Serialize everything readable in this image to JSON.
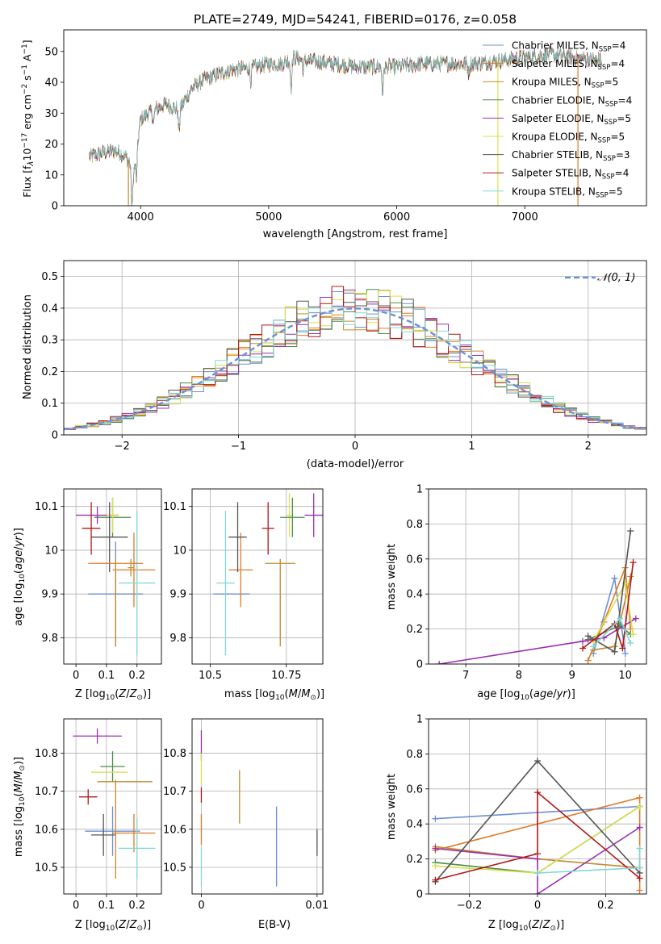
{
  "figure_title": "PLATE=2749, MJD=54241, FIBERID=0176, z=0.058",
  "models": [
    {
      "name": "Chabrier MILES, N$_{SSP}$=4",
      "label_html": "Chabrier MILES, N<sub>SSP</sub>=4",
      "color": "#6d8fd6"
    },
    {
      "name": "Salpeter MILES, N$_{SSP}$=4",
      "label_html": "Salpeter MILES, N<sub>SSP</sub>=4",
      "color": "#e07a28"
    },
    {
      "name": "Kroupa MILES, N$_{SSP}$=5",
      "label_html": "Kroupa MILES, N<sub>SSP</sub>=5",
      "color": "#c68a2c"
    },
    {
      "name": "Chabrier ELODIE, N$_{SSP}$=4",
      "label_html": "Chabrier ELODIE, N<sub>SSP</sub>=4",
      "color": "#4a8c4a"
    },
    {
      "name": "Salpeter ELODIE, N$_{SSP}$=5",
      "label_html": "Salpeter ELODIE, N<sub>SSP</sub>=5",
      "color": "#9b30b0"
    },
    {
      "name": "Kroupa ELODIE, N$_{SSP}$=5",
      "label_html": "Kroupa ELODIE, N<sub>SSP</sub>=5",
      "color": "#d8e24a"
    },
    {
      "name": "Chabrier STELIB, N$_{SSP}$=3",
      "label_html": "Chabrier STELIB, N<sub>SSP</sub>=3",
      "color": "#555555"
    },
    {
      "name": "Salpeter STELIB, N$_{SSP}$=4",
      "label_html": "Salpeter STELIB, N<sub>SSP</sub>=4",
      "color": "#b01818"
    },
    {
      "name": "Kroupa STELIB, N$_{SSP}$=5",
      "label_html": "Kroupa STELIB, N<sub>SSP</sub>=5",
      "color": "#7fd8d8"
    }
  ],
  "chart_data": [
    {
      "id": "spectrum",
      "type": "line",
      "xlabel": "wavelength [Angstrom, rest frame]",
      "ylabel": "Flux [f$_\\lambda$10$^{-17}$ erg cm$^{-2}$ s$^{-1}$ A$^{-1}$]",
      "xlim": [
        3400,
        7950
      ],
      "ylim": [
        0,
        57
      ],
      "xticks": [
        4000,
        5000,
        6000,
        7000
      ],
      "yticks": [
        0,
        10,
        20,
        30,
        40,
        50
      ],
      "legend": "upper right",
      "grid": false,
      "continuum": {
        "x": [
          3600,
          3700,
          3800,
          3880,
          3950,
          4000,
          4100,
          4200,
          4300,
          4400,
          4500,
          4700,
          4900,
          5000,
          5100,
          5200,
          5300,
          5500,
          5700,
          5900,
          6000,
          6200,
          6400,
          6600,
          6800,
          7000,
          7200,
          7400,
          7600
        ],
        "y": [
          16,
          17,
          18,
          16,
          12,
          28,
          31,
          33,
          31,
          38,
          41,
          44,
          45,
          46,
          46,
          48,
          47,
          46,
          45,
          45,
          45,
          46,
          46,
          46,
          47,
          48,
          49,
          48,
          47
        ]
      },
      "absorption_lines": [
        {
          "x": 3933,
          "depth": 14
        },
        {
          "x": 3968,
          "depth": 9
        },
        {
          "x": 4101,
          "depth": 4
        },
        {
          "x": 4300,
          "depth": 7
        },
        {
          "x": 4861,
          "depth": 4
        },
        {
          "x": 5175,
          "depth": 9
        },
        {
          "x": 5890,
          "depth": 8
        },
        {
          "x": 5270,
          "depth": 3
        },
        {
          "x": 6563,
          "depth": 3
        }
      ],
      "spikes": [
        {
          "x": 3905,
          "y_low": 0,
          "series": 2
        },
        {
          "x": 6790,
          "y_low": 0,
          "series": 5
        },
        {
          "x": 7415,
          "y_low": 0,
          "series": 1
        }
      ]
    },
    {
      "id": "residuals",
      "type": "histogram",
      "xlabel": "(data-model)/error",
      "ylabel": "Normed distribution",
      "xlim": [
        -2.5,
        2.5
      ],
      "ylim": [
        0,
        0.55
      ],
      "xticks": [
        -2,
        -1,
        0,
        1,
        2
      ],
      "yticks": [
        0.0,
        0.1,
        0.2,
        0.3,
        0.4,
        0.5
      ],
      "bin_width": 0.1,
      "grid": true,
      "reference_curve": {
        "label": "$\\mathcal{N}(0,1)$",
        "type": "gaussian",
        "mean": 0,
        "sigma": 1,
        "color": "#6d8fd6"
      },
      "legend": "upper right"
    },
    {
      "id": "age_vs_Z",
      "type": "errorbar",
      "xlabel": "Z [log$_{10}$(Z/Z$_\\odot$)]",
      "ylabel": "age  [log$_{10}$(age/yr)]",
      "xlim": [
        -0.04,
        0.28
      ],
      "ylim": [
        9.74,
        10.14
      ],
      "xticks": [
        0.0,
        0.1,
        0.2
      ],
      "yticks": [
        9.8,
        9.9,
        10.0,
        10.1
      ],
      "grid": true,
      "points": [
        {
          "series": 0,
          "x": 0.13,
          "y": 9.9,
          "xerr": 0.09,
          "yerr": 0.12
        },
        {
          "series": 1,
          "x": 0.19,
          "y": 9.955,
          "xerr": 0.07,
          "yerr": 0.085
        },
        {
          "series": 2,
          "x": 0.18,
          "y": 9.96,
          "xerr": 0.01,
          "yerr": 0.02
        },
        {
          "series": 3,
          "x": 0.12,
          "y": 10.075,
          "xerr": 0.06,
          "yerr": 0.045
        },
        {
          "series": 4,
          "x": 0.07,
          "y": 10.08,
          "xerr": 0.07,
          "yerr": 0.02
        },
        {
          "series": 5,
          "x": 0.12,
          "y": 10.08,
          "xerr": 0.02,
          "yerr": 0.04
        },
        {
          "series": 6,
          "x": 0.11,
          "y": 10.03,
          "xerr": 0.06,
          "yerr": 0.08
        },
        {
          "series": 7,
          "x": 0.05,
          "y": 10.05,
          "xerr": 0.03,
          "yerr": 0.06
        },
        {
          "series": 8,
          "x": 0.2,
          "y": 9.925,
          "xerr": 0.06,
          "yerr": 0.165
        },
        {
          "series": 1,
          "x": 0.13,
          "y": 9.97,
          "xerr": 0.09,
          "yerr": 0.0
        },
        {
          "series": 2,
          "x": 0.13,
          "y": 9.88,
          "xerr": 0.0,
          "yerr": 0.1
        }
      ]
    },
    {
      "id": "age_vs_mass",
      "type": "errorbar",
      "xlabel": "mass [log$_{10}$(M/M$_\\odot$)]",
      "ylabel": "",
      "xlim": [
        10.44,
        10.87
      ],
      "ylim": [
        9.74,
        10.14
      ],
      "xticks": [
        10.5,
        10.75
      ],
      "yticks": [
        9.8,
        9.9,
        10.0,
        10.1
      ],
      "grid": true,
      "points": [
        {
          "series": 0,
          "x": 10.57,
          "y": 9.9,
          "xerr": 0.06,
          "yerr": 0.0
        },
        {
          "series": 8,
          "x": 10.55,
          "y": 9.925,
          "xerr": 0.03,
          "yerr": 0.165
        },
        {
          "series": 1,
          "x": 10.6,
          "y": 9.955,
          "xerr": 0.04,
          "yerr": 0.085
        },
        {
          "series": 6,
          "x": 10.59,
          "y": 10.03,
          "xerr": 0.03,
          "yerr": 0.08
        },
        {
          "series": 7,
          "x": 10.69,
          "y": 10.05,
          "xerr": 0.02,
          "yerr": 0.06
        },
        {
          "series": 4,
          "x": 10.84,
          "y": 10.08,
          "xerr": 0.03,
          "yerr": 0.05
        },
        {
          "series": 5,
          "x": 10.76,
          "y": 10.08,
          "xerr": 0.01,
          "yerr": 0.05
        },
        {
          "series": 3,
          "x": 10.77,
          "y": 10.075,
          "xerr": 0.04,
          "yerr": 0.045
        },
        {
          "series": 2,
          "x": 10.73,
          "y": 9.97,
          "xerr": 0.05,
          "yerr": 0.0
        },
        {
          "series": 2,
          "x": 10.73,
          "y": 9.88,
          "xerr": 0.0,
          "yerr": 0.1
        }
      ]
    },
    {
      "id": "weight_vs_age",
      "type": "line",
      "xlabel": "age  [log$_{10}$(age/yr)]",
      "ylabel": "mass weight",
      "xlim": [
        6.3,
        10.4
      ],
      "ylim": [
        0.0,
        1.0
      ],
      "xticks": [
        7,
        8,
        9,
        10
      ],
      "yticks": [
        0.0,
        0.2,
        0.4,
        0.6,
        0.8,
        1.0
      ],
      "grid": true,
      "series": [
        {
          "series": 0,
          "x": [
            9.4,
            9.8,
            10.0
          ],
          "y": [
            0.06,
            0.49,
            0.06
          ]
        },
        {
          "series": 1,
          "x": [
            9.3,
            9.6,
            10.0,
            10.1
          ],
          "y": [
            0.02,
            0.24,
            0.55,
            0.2
          ]
        },
        {
          "series": 2,
          "x": [
            9.4,
            9.8,
            10.1
          ],
          "y": [
            0.08,
            0.1,
            0.5
          ]
        },
        {
          "series": 3,
          "x": [
            9.3,
            9.9,
            10.1
          ],
          "y": [
            0.14,
            0.22,
            0.17
          ]
        },
        {
          "series": 4,
          "x": [
            6.5,
            9.2,
            9.6,
            10.2
          ],
          "y": [
            0.0,
            0.13,
            0.15,
            0.26
          ]
        },
        {
          "series": 5,
          "x": [
            9.4,
            10.0,
            10.15
          ],
          "y": [
            0.13,
            0.46,
            0.17
          ]
        },
        {
          "series": 6,
          "x": [
            9.3,
            9.8,
            10.1
          ],
          "y": [
            0.16,
            0.07,
            0.76
          ]
        },
        {
          "series": 7,
          "x": [
            9.2,
            9.8,
            9.95,
            10.15
          ],
          "y": [
            0.09,
            0.23,
            0.09,
            0.58
          ]
        },
        {
          "series": 8,
          "x": [
            9.4,
            9.9,
            10.1
          ],
          "y": [
            0.1,
            0.26,
            0.12
          ]
        }
      ]
    },
    {
      "id": "mass_vs_Z",
      "type": "errorbar",
      "xlabel": "Z [log$_{10}$(Z/Z$_\\odot$)]",
      "ylabel": "mass [log$_{10}$(M/M$_\\odot$)]",
      "xlim": [
        -0.04,
        0.28
      ],
      "ylim": [
        10.43,
        10.89
      ],
      "xticks": [
        0.0,
        0.1,
        0.2
      ],
      "yticks": [
        10.5,
        10.6,
        10.7,
        10.8
      ],
      "grid": true,
      "points": [
        {
          "series": 4,
          "x": 0.07,
          "y": 10.845,
          "xerr": 0.08,
          "yerr": 0.02
        },
        {
          "series": 3,
          "x": 0.12,
          "y": 10.765,
          "xerr": 0.04,
          "yerr": 0.04
        },
        {
          "series": 5,
          "x": 0.11,
          "y": 10.75,
          "xerr": 0.06,
          "yerr": 0.0
        },
        {
          "series": 2,
          "x": 0.16,
          "y": 10.725,
          "xerr": 0.09,
          "yerr": 0.0
        },
        {
          "series": 7,
          "x": 0.04,
          "y": 10.685,
          "xerr": 0.03,
          "yerr": 0.02
        },
        {
          "series": 0,
          "x": 0.12,
          "y": 10.595,
          "xerr": 0.09,
          "yerr": 0.065
        },
        {
          "series": 1,
          "x": 0.19,
          "y": 10.59,
          "xerr": 0.07,
          "yerr": 0.05
        },
        {
          "series": 6,
          "x": 0.09,
          "y": 10.585,
          "xerr": 0.04,
          "yerr": 0.055
        },
        {
          "series": 8,
          "x": 0.2,
          "y": 10.55,
          "xerr": 0.06,
          "yerr": 0.08
        },
        {
          "series": 2,
          "x": 0.13,
          "y": 10.6,
          "xerr": 0.0,
          "yerr": 0.13
        }
      ]
    },
    {
      "id": "mass_vs_EBV",
      "type": "errorbar",
      "xlabel": "E(B-V)",
      "ylabel": "",
      "xlim": [
        -0.0008,
        0.0105
      ],
      "ylim": [
        10.43,
        10.89
      ],
      "xticks": [
        0.0,
        0.01
      ],
      "yticks": [
        10.5,
        10.6,
        10.7,
        10.8
      ],
      "grid": true,
      "points": [
        {
          "series": 4,
          "x": 0.0,
          "y": 10.82,
          "xerr": 0,
          "yerr": 0.04
        },
        {
          "series": 5,
          "x": 0.0,
          "y": 10.76,
          "xerr": 0,
          "yerr": 0.04
        },
        {
          "series": 7,
          "x": 0.0,
          "y": 10.69,
          "xerr": 0,
          "yerr": 0.02
        },
        {
          "series": 1,
          "x": 0.0,
          "y": 10.6,
          "xerr": 0,
          "yerr": 0.04
        },
        {
          "series": 8,
          "x": 0.0,
          "y": 10.5,
          "xerr": 0,
          "yerr": 0.05
        },
        {
          "series": 2,
          "x": 0.0033,
          "y": 10.685,
          "xerr": 0,
          "yerr": 0.07
        },
        {
          "series": 0,
          "x": 0.0065,
          "y": 10.555,
          "xerr": 0,
          "yerr": 0.105
        },
        {
          "series": 6,
          "x": 0.01,
          "y": 10.565,
          "xerr": 0,
          "yerr": 0.035
        }
      ]
    },
    {
      "id": "weight_vs_Z",
      "type": "line",
      "xlabel": "Z [log$_{10}$(Z/Z$_\\odot$)]",
      "ylabel": "mass weight",
      "xlim": [
        -0.32,
        0.32
      ],
      "ylim": [
        0.0,
        1.0
      ],
      "xticks": [
        -0.2,
        0.0,
        0.2
      ],
      "yticks": [
        0.0,
        0.2,
        0.4,
        0.6,
        0.8,
        1.0
      ],
      "grid": true,
      "series": [
        {
          "series": 0,
          "x": [
            -0.3,
            0.3
          ],
          "y": [
            0.43,
            0.5
          ]
        },
        {
          "series": 1,
          "x": [
            -0.3,
            0.3,
            0.3
          ],
          "y": [
            0.25,
            0.55,
            0.02
          ]
        },
        {
          "series": 2,
          "x": [
            -0.3,
            0.0,
            0.3
          ],
          "y": [
            0.27,
            0.2,
            0.15
          ]
        },
        {
          "series": 3,
          "x": [
            -0.3,
            0.0,
            0.3
          ],
          "y": [
            0.18,
            0.12,
            0.5
          ]
        },
        {
          "series": 4,
          "x": [
            -0.3,
            0.0,
            0.0,
            0.3
          ],
          "y": [
            0.26,
            0.2,
            0.0,
            0.38
          ]
        },
        {
          "series": 5,
          "x": [
            -0.3,
            0.0,
            0.3
          ],
          "y": [
            0.16,
            0.12,
            0.5
          ]
        },
        {
          "series": 6,
          "x": [
            -0.3,
            0.0,
            0.3
          ],
          "y": [
            0.07,
            0.76,
            0.12
          ]
        },
        {
          "series": 7,
          "x": [
            -0.3,
            0.0,
            0.0,
            0.3
          ],
          "y": [
            0.08,
            0.23,
            0.58,
            0.09
          ]
        },
        {
          "series": 8,
          "x": [
            0.0,
            0.3,
            0.3
          ],
          "y": [
            0.12,
            0.15,
            0.26
          ]
        }
      ]
    }
  ]
}
